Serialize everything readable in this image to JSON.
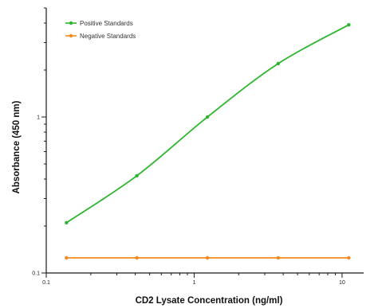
{
  "chart_data": {
    "type": "line",
    "title": "",
    "xlabel": "CD2 Lysate Concentration (ng/ml)",
    "ylabel": "Absorbance (450 nm)",
    "xscale": "log",
    "yscale": "log",
    "xlim": [
      0.1,
      14
    ],
    "ylim": [
      0.1,
      5
    ],
    "x_ticks": [
      {
        "value": 0.1,
        "label": "0.1"
      },
      {
        "value": 1,
        "label": "1"
      },
      {
        "value": 10,
        "label": "10"
      }
    ],
    "y_ticks": [
      {
        "value": 0.1,
        "label": "0.1"
      },
      {
        "value": 1,
        "label": "1"
      }
    ],
    "legend_position": "top-left",
    "grid": false,
    "series": [
      {
        "name": "Positive Standards",
        "color": "#2db52d",
        "curve": "fitted",
        "points": [
          {
            "x": 0.137,
            "y": 0.21
          },
          {
            "x": 0.41,
            "y": 0.42
          },
          {
            "x": 1.23,
            "y": 1.0
          },
          {
            "x": 3.7,
            "y": 2.2
          },
          {
            "x": 11.1,
            "y": 3.9
          }
        ]
      },
      {
        "name": "Negative Standards",
        "color": "#f08a1a",
        "curve": "straight",
        "points": [
          {
            "x": 0.137,
            "y": 0.125
          },
          {
            "x": 0.41,
            "y": 0.125
          },
          {
            "x": 1.23,
            "y": 0.125
          },
          {
            "x": 3.7,
            "y": 0.125
          },
          {
            "x": 11.1,
            "y": 0.125
          }
        ]
      }
    ]
  }
}
